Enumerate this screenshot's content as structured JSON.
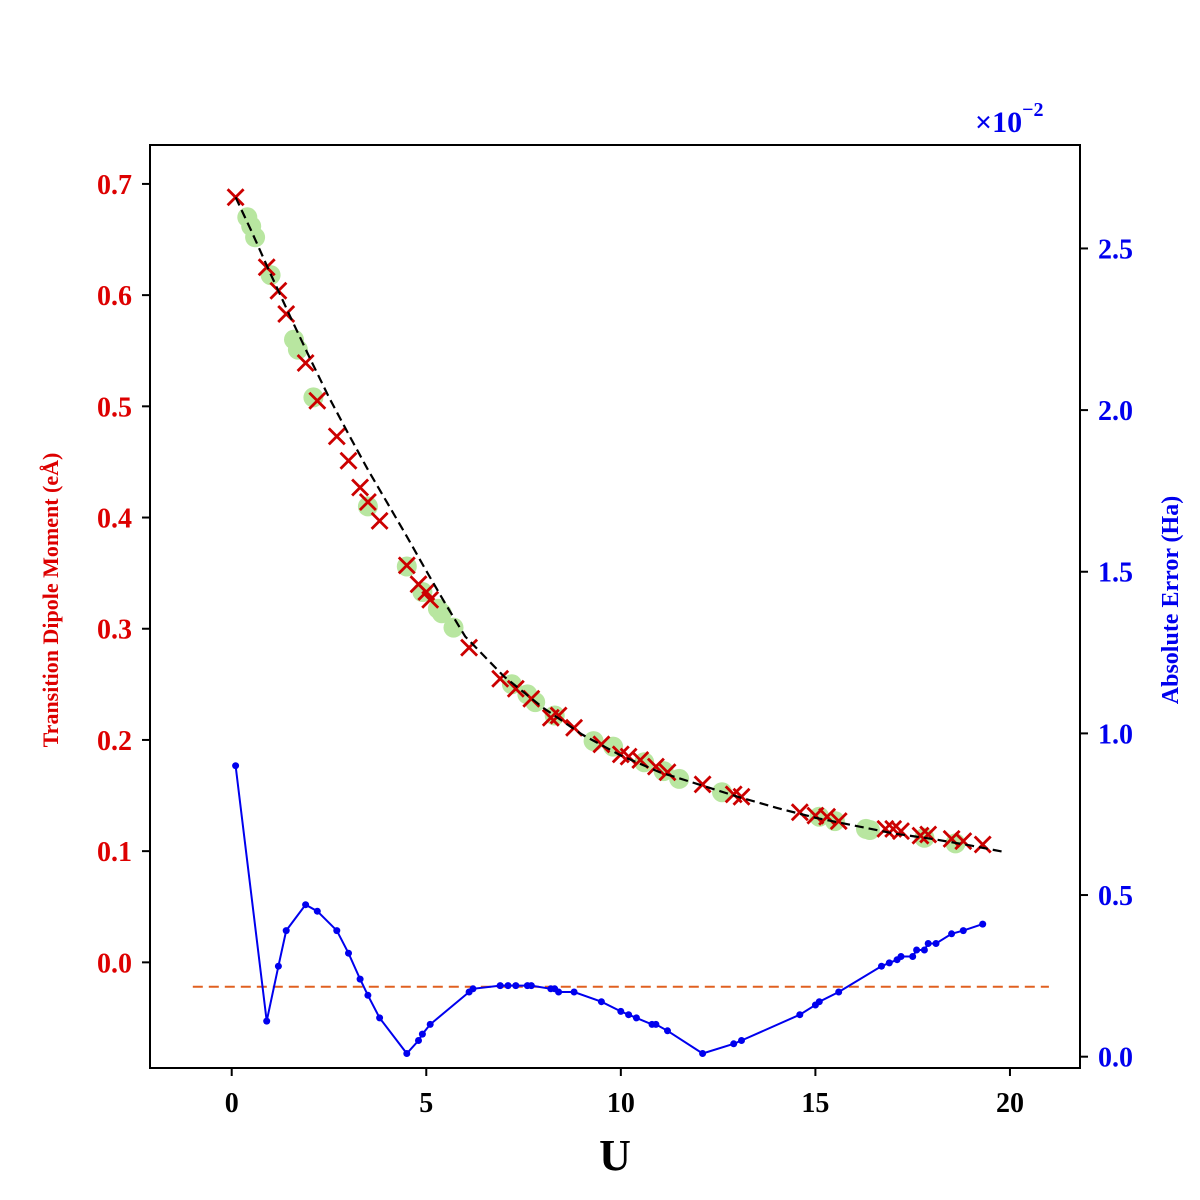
{
  "chart_data": {
    "type": "line",
    "xlabel": "U",
    "ylabel_left": "Transition Dipole Moment (eÅ)",
    "ylabel_right": "Absolute Error (Ha)",
    "right_axis_multiplier": "×10",
    "right_axis_multiplier_exp": "−2",
    "xlim": [
      -2.1,
      21.8
    ],
    "ylim_left": [
      -0.095,
      0.735
    ],
    "ylim_right": [
      -0.035,
      2.82
    ],
    "x_ticks": [
      0,
      5,
      10,
      15,
      20
    ],
    "x_tick_labels": [
      "0",
      "5",
      "10",
      "15",
      "20"
    ],
    "y_left_ticks": [
      0.0,
      0.1,
      0.2,
      0.3,
      0.4,
      0.5,
      0.6,
      0.7
    ],
    "y_left_tick_labels": [
      "0.0",
      "0.1",
      "0.2",
      "0.3",
      "0.4",
      "0.5",
      "0.6",
      "0.7"
    ],
    "y_right_ticks": [
      0.0,
      0.5,
      1.0,
      1.5,
      2.0,
      2.5
    ],
    "y_right_tick_labels": [
      "0.0",
      "0.5",
      "1.0",
      "1.5",
      "2.0",
      "2.5"
    ],
    "grid": false,
    "colors": {
      "left_axis": "#dd0000",
      "right_axis": "#0000ee",
      "fit_line": "#000000",
      "markers_x": "#cc0000",
      "markers_circle": "#b8e6a0",
      "error_line": "#0000ee",
      "reference_line": "#e06020"
    },
    "series": [
      {
        "axis": "left",
        "style": "dashed-line",
        "x": [
          0.1,
          0.5,
          1.0,
          1.5,
          2.0,
          2.5,
          3.0,
          3.5,
          4.0,
          4.5,
          5.0,
          5.5,
          6.0,
          7.0,
          8.0,
          9.0,
          10.0,
          11.0,
          12.0,
          13.0,
          14.0,
          15.0,
          16.0,
          17.0,
          18.0,
          19.0,
          19.9
        ],
        "y": [
          0.688,
          0.658,
          0.619,
          0.581,
          0.544,
          0.508,
          0.475,
          0.443,
          0.413,
          0.383,
          0.352,
          0.322,
          0.293,
          0.257,
          0.229,
          0.205,
          0.186,
          0.171,
          0.16,
          0.149,
          0.139,
          0.13,
          0.123,
          0.116,
          0.111,
          0.105,
          0.099
        ]
      },
      {
        "axis": "left",
        "style": "circle-markers",
        "x": [
          0.4,
          0.5,
          0.6,
          1.0,
          1.6,
          1.7,
          2.1,
          3.5,
          4.5,
          4.9,
          5.3,
          5.4,
          5.7,
          7.2,
          7.6,
          7.8,
          8.3,
          9.3,
          9.8,
          10.6,
          11.1,
          11.5,
          12.6,
          15.1,
          15.5,
          16.3,
          16.4,
          17.8,
          18.6
        ],
        "y": [
          0.67,
          0.662,
          0.652,
          0.618,
          0.56,
          0.551,
          0.508,
          0.41,
          0.356,
          0.333,
          0.318,
          0.314,
          0.301,
          0.25,
          0.241,
          0.234,
          0.222,
          0.199,
          0.194,
          0.18,
          0.172,
          0.165,
          0.153,
          0.131,
          0.127,
          0.12,
          0.119,
          0.112,
          0.107
        ]
      },
      {
        "axis": "left",
        "style": "x-markers",
        "x": [
          0.1,
          0.9,
          1.2,
          1.4,
          1.9,
          2.2,
          2.7,
          3.0,
          3.3,
          3.5,
          3.8,
          4.5,
          4.8,
          5.0,
          5.1,
          6.1,
          6.9,
          7.3,
          7.7,
          8.2,
          8.4,
          8.8,
          9.5,
          10.0,
          10.2,
          10.5,
          10.9,
          11.2,
          12.1,
          12.9,
          13.1,
          14.6,
          15.0,
          15.3,
          15.6,
          16.8,
          17.0,
          17.2,
          17.7,
          17.9,
          18.5,
          18.8,
          19.3
        ],
        "y": [
          0.688,
          0.625,
          0.604,
          0.583,
          0.539,
          0.505,
          0.473,
          0.451,
          0.427,
          0.414,
          0.397,
          0.357,
          0.34,
          0.333,
          0.326,
          0.283,
          0.255,
          0.246,
          0.237,
          0.22,
          0.222,
          0.211,
          0.196,
          0.187,
          0.185,
          0.182,
          0.176,
          0.171,
          0.16,
          0.151,
          0.149,
          0.135,
          0.132,
          0.131,
          0.127,
          0.12,
          0.12,
          0.118,
          0.114,
          0.115,
          0.111,
          0.109,
          0.106
        ]
      },
      {
        "axis": "right",
        "style": "line-with-dots",
        "x": [
          0.1,
          0.9,
          1.2,
          1.4,
          1.9,
          2.2,
          2.7,
          3.0,
          3.3,
          3.5,
          3.8,
          4.5,
          4.8,
          4.9,
          5.1,
          6.1,
          6.2,
          6.9,
          7.1,
          7.3,
          7.6,
          7.7,
          8.2,
          8.3,
          8.4,
          8.8,
          9.5,
          10.0,
          10.2,
          10.4,
          10.8,
          10.9,
          11.2,
          12.1,
          12.9,
          13.1,
          14.6,
          15.0,
          15.1,
          15.6,
          16.7,
          16.9,
          17.1,
          17.2,
          17.5,
          17.6,
          17.8,
          17.9,
          18.1,
          18.5,
          18.8,
          19.3
        ],
        "y": [
          0.9,
          0.11,
          0.28,
          0.39,
          0.47,
          0.45,
          0.39,
          0.32,
          0.24,
          0.19,
          0.12,
          0.01,
          0.05,
          0.07,
          0.1,
          0.2,
          0.21,
          0.22,
          0.22,
          0.22,
          0.22,
          0.22,
          0.21,
          0.21,
          0.2,
          0.2,
          0.17,
          0.14,
          0.13,
          0.12,
          0.1,
          0.1,
          0.08,
          0.01,
          0.04,
          0.05,
          0.13,
          0.16,
          0.17,
          0.2,
          0.28,
          0.29,
          0.3,
          0.31,
          0.31,
          0.33,
          0.33,
          0.35,
          0.35,
          0.38,
          0.39,
          0.41
        ]
      },
      {
        "axis": "left",
        "style": "horizontal-dashed-reference",
        "x": [
          -1.0,
          21.0
        ],
        "y": [
          -0.022,
          -0.022
        ]
      }
    ]
  }
}
